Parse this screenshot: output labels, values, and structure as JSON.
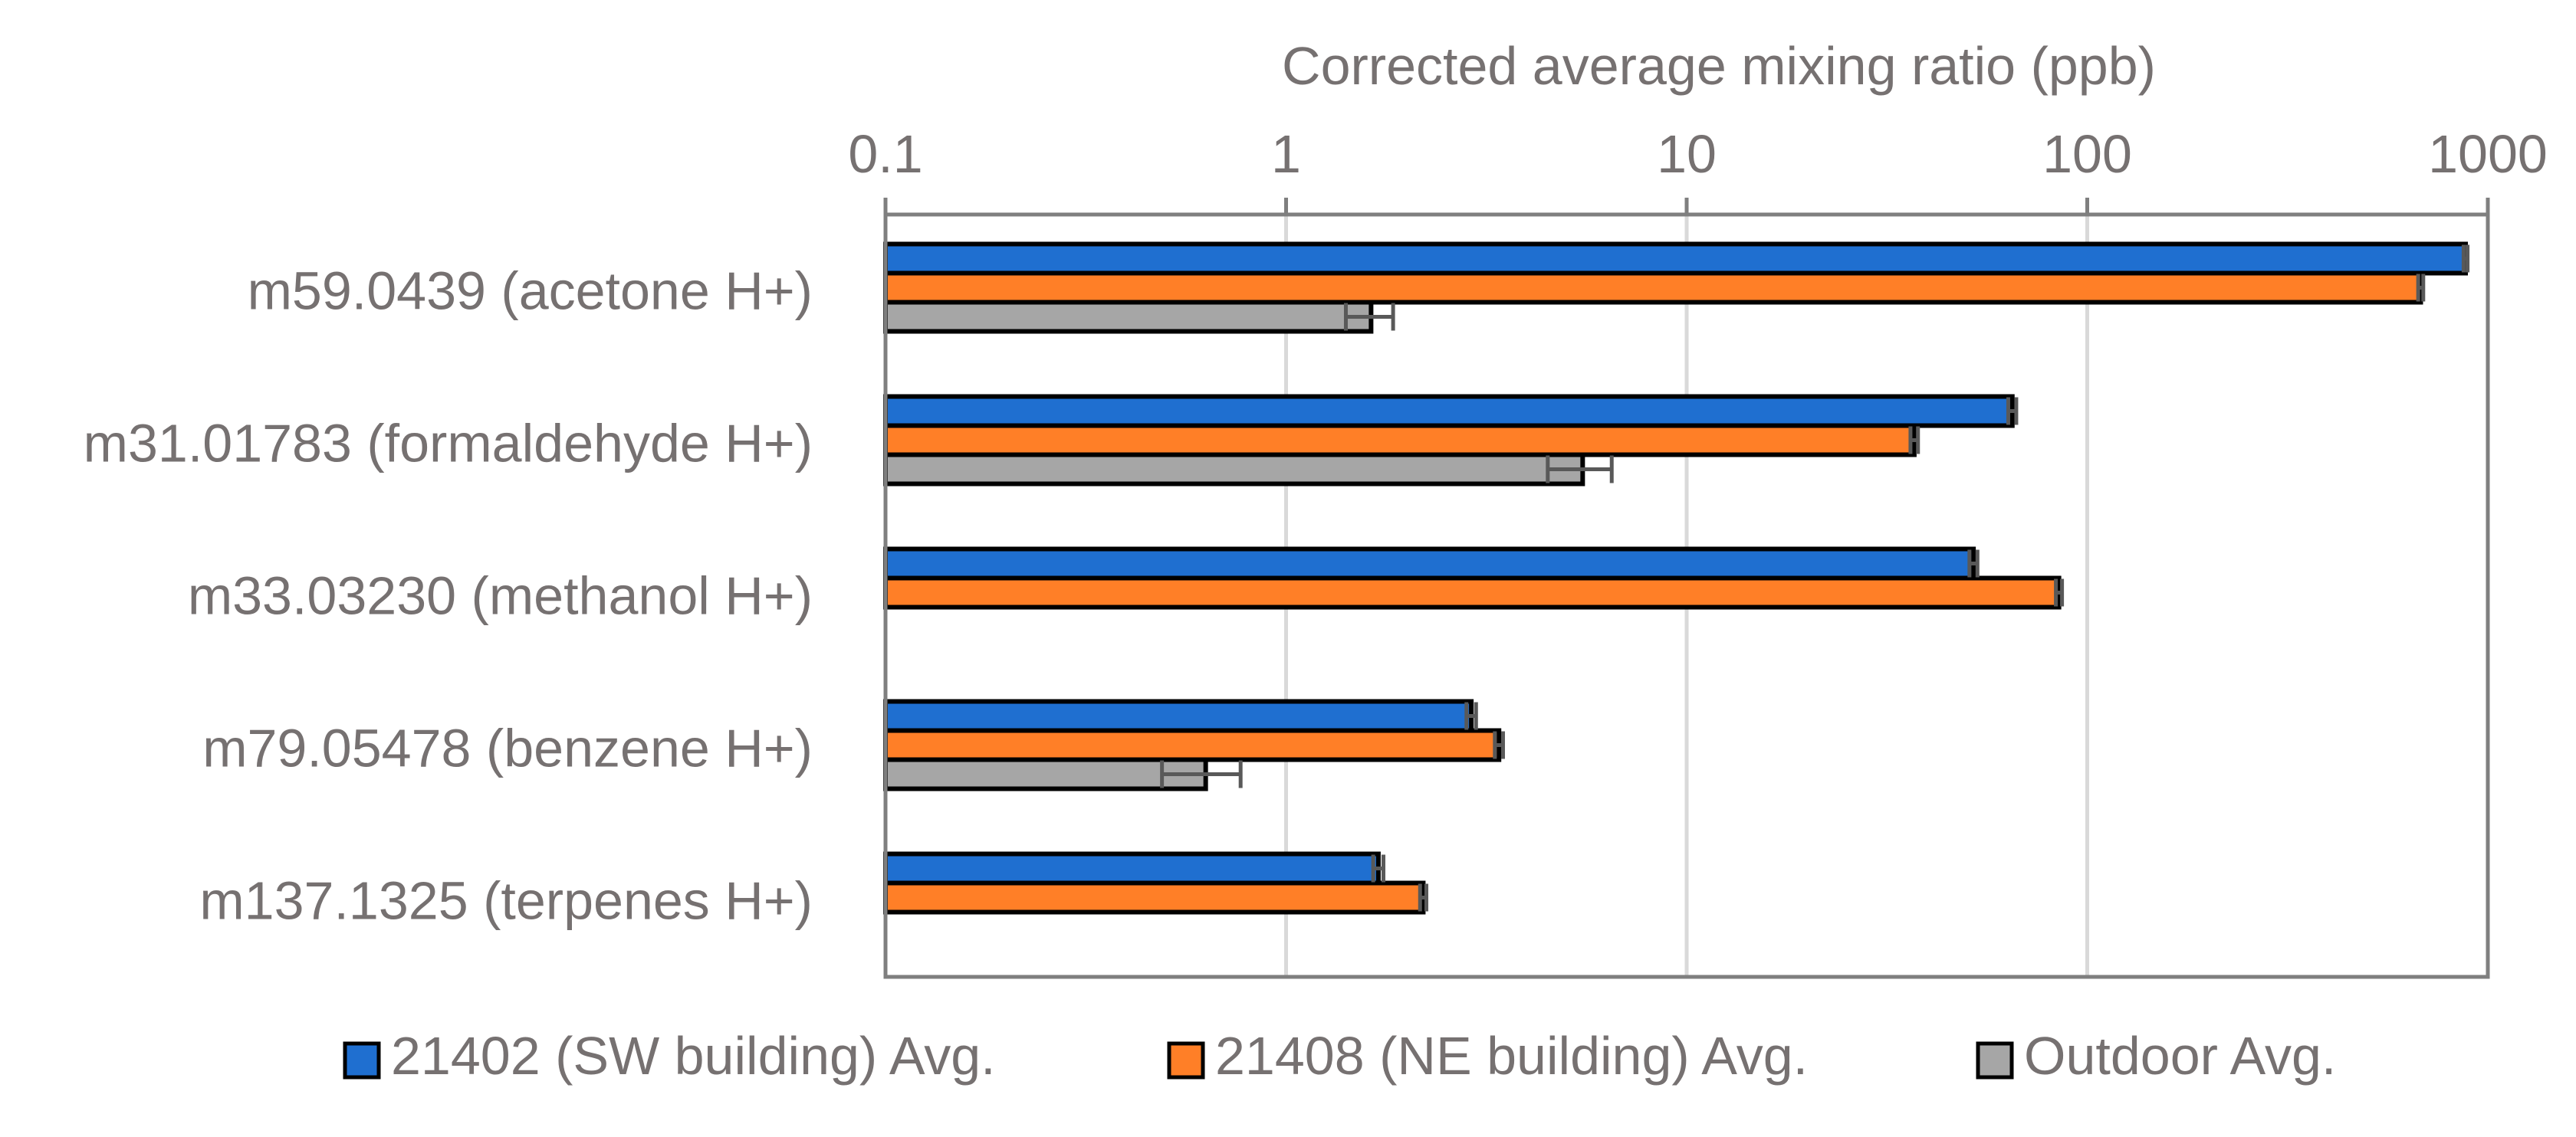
{
  "chart_data": {
    "type": "bar",
    "orientation": "horizontal",
    "x_scale": "log",
    "xlabel": "Corrected average mixing ratio (ppb)",
    "xlim": [
      0.1,
      1000
    ],
    "x_ticks": [
      0.1,
      1,
      10,
      100,
      1000
    ],
    "x_tick_labels": [
      "0.1",
      "1",
      "10",
      "100",
      "1000"
    ],
    "grid": true,
    "x_axis_position": "top",
    "legend_position": "bottom",
    "categories": [
      "m59.0439 (acetone H+)",
      "m31.01783 (formaldehyde H+)",
      "m33.03230 (methanol H+)",
      "m79.05478 (benzene H+)",
      "m137.1325 (terpenes H+)"
    ],
    "series": [
      {
        "name": "21402 (SW building) Avg.",
        "color": "#1F6FD0",
        "values": [
          880,
          65,
          52,
          2.9,
          1.7
        ],
        "errors": [
          10,
          1.5,
          1.2,
          0.08,
          0.05
        ]
      },
      {
        "name": "21408 (NE building) Avg.",
        "color": "#FF7F27",
        "values": [
          680,
          37,
          85,
          3.4,
          2.2
        ],
        "errors": [
          10,
          0.8,
          1.5,
          0.08,
          0.04
        ]
      },
      {
        "name": "Outdoor Avg.",
        "color": "#A6A6A6",
        "values": [
          1.63,
          5.5,
          null,
          0.63,
          null
        ],
        "errors": [
          0.22,
          1.0,
          null,
          0.14,
          null
        ]
      }
    ]
  }
}
